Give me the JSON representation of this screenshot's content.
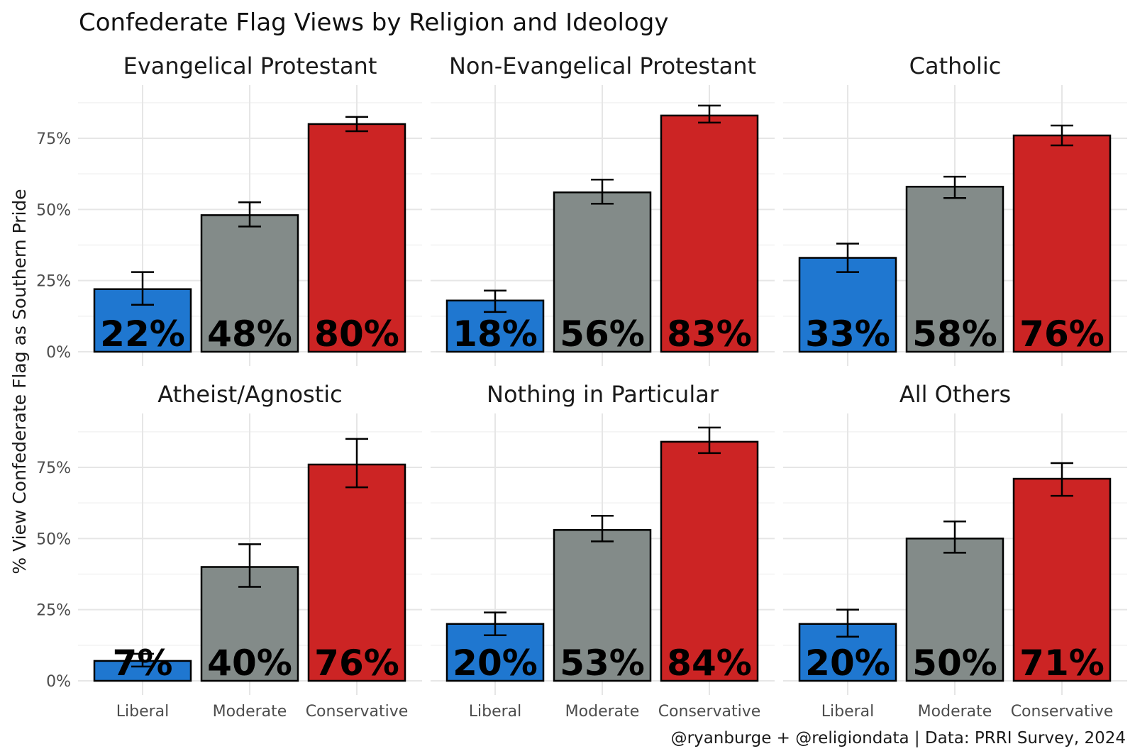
{
  "chart_data": {
    "type": "bar",
    "title": "Confederate Flag Views by Religion and Ideology",
    "ylabel": "% View Confederate Flag as Southern Pride",
    "xlabel": "",
    "caption": "@ryanburge + @religiondata | Data: PRRI Survey, 2024",
    "categories": [
      "Liberal",
      "Moderate",
      "Conservative"
    ],
    "ylim": [
      0,
      90
    ],
    "yticks": [
      0,
      25,
      50,
      75
    ],
    "ytick_labels": [
      "0%",
      "25%",
      "50%",
      "75%"
    ],
    "colors": {
      "Liberal": "#1f77d0",
      "Moderate": "#838b89",
      "Conservative": "#cc2424"
    },
    "facets": [
      {
        "name": "Evangelical Protestant",
        "values": [
          22,
          48,
          80
        ],
        "labels": [
          "22%",
          "48%",
          "80%"
        ],
        "ci_low": [
          16.5,
          44,
          77.5
        ],
        "ci_high": [
          28,
          52.5,
          82.5
        ]
      },
      {
        "name": "Non-Evangelical Protestant",
        "values": [
          18,
          56,
          83
        ],
        "labels": [
          "18%",
          "56%",
          "83%"
        ],
        "ci_low": [
          14,
          52,
          80.5
        ],
        "ci_high": [
          21.5,
          60.5,
          86.5
        ]
      },
      {
        "name": "Catholic",
        "values": [
          33,
          58,
          76
        ],
        "labels": [
          "33%",
          "58%",
          "76%"
        ],
        "ci_low": [
          28,
          54,
          72.5
        ],
        "ci_high": [
          38,
          61.5,
          79.5
        ]
      },
      {
        "name": "Atheist/Agnostic",
        "values": [
          7,
          40,
          76
        ],
        "labels": [
          "7%",
          "40%",
          "76%"
        ],
        "ci_low": [
          5,
          33,
          68
        ],
        "ci_high": [
          9.5,
          48,
          85
        ]
      },
      {
        "name": "Nothing in Particular",
        "values": [
          20,
          53,
          84
        ],
        "labels": [
          "20%",
          "53%",
          "84%"
        ],
        "ci_low": [
          16,
          49,
          80
        ],
        "ci_high": [
          24,
          58,
          89
        ]
      },
      {
        "name": "All Others",
        "values": [
          20,
          50,
          71
        ],
        "labels": [
          "20%",
          "50%",
          "71%"
        ],
        "ci_low": [
          15.5,
          45,
          65
        ],
        "ci_high": [
          25,
          56,
          76.5
        ]
      }
    ]
  }
}
